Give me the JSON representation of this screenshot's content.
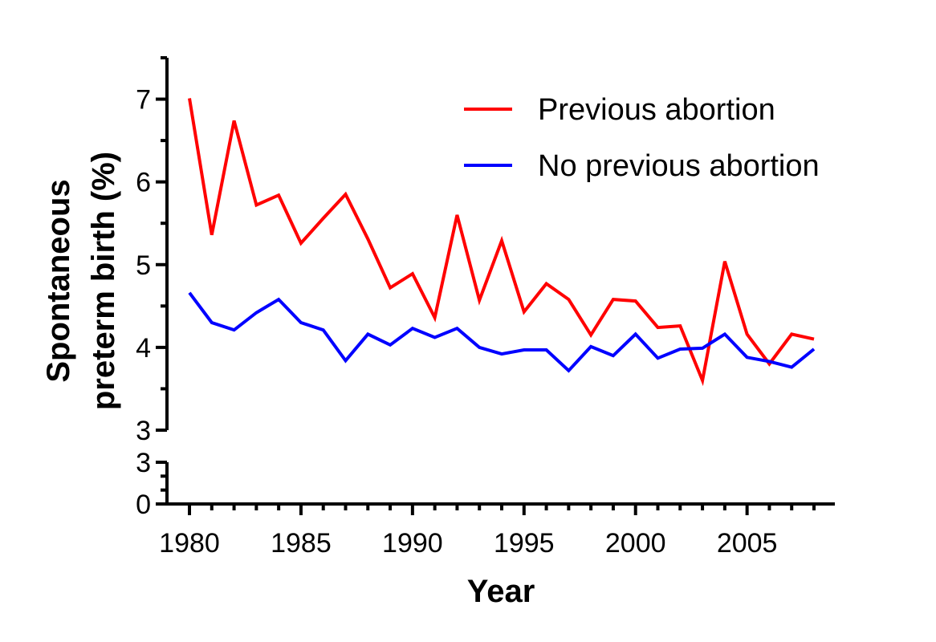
{
  "chart_data": {
    "type": "line",
    "title": "",
    "xlabel": "Year",
    "ylabel_line1": "Spontaneous",
    "ylabel_line2": "preterm birth (%)",
    "x": [
      1980,
      1981,
      1982,
      1983,
      1984,
      1985,
      1986,
      1987,
      1988,
      1989,
      1990,
      1991,
      1992,
      1993,
      1994,
      1995,
      1996,
      1997,
      1998,
      1999,
      2000,
      2001,
      2002,
      2003,
      2004,
      2005,
      2006,
      2007,
      2008
    ],
    "xlim": [
      1980,
      2008
    ],
    "x_ticks": [
      1980,
      1985,
      1990,
      1995,
      2000,
      2005
    ],
    "y_axis_broken": true,
    "ylim_upper": [
      3,
      7.5
    ],
    "y_ticks_upper": [
      3,
      4,
      5,
      6,
      7
    ],
    "ylim_lower": [
      0,
      3
    ],
    "y_ticks_lower": [
      0,
      3
    ],
    "legend_position": "top-right",
    "grid": false,
    "series": [
      {
        "name": "Previous abortion",
        "color": "#ff0000",
        "values": [
          7.01,
          5.36,
          6.74,
          5.72,
          5.84,
          5.26,
          5.56,
          5.85,
          5.31,
          4.72,
          4.89,
          4.36,
          5.6,
          4.57,
          5.29,
          4.43,
          4.77,
          4.58,
          4.15,
          4.58,
          4.56,
          4.24,
          4.26,
          3.6,
          5.04,
          4.16,
          3.8,
          4.16,
          4.1
        ]
      },
      {
        "name": "No previous abortion",
        "color": "#0000ff",
        "values": [
          4.66,
          4.3,
          4.21,
          4.42,
          4.58,
          4.3,
          4.21,
          3.84,
          4.16,
          4.03,
          4.23,
          4.12,
          4.23,
          4.0,
          3.92,
          3.97,
          3.97,
          3.72,
          4.01,
          3.9,
          4.16,
          3.87,
          3.98,
          3.99,
          4.16,
          3.88,
          3.83,
          3.76,
          3.98
        ]
      }
    ]
  }
}
